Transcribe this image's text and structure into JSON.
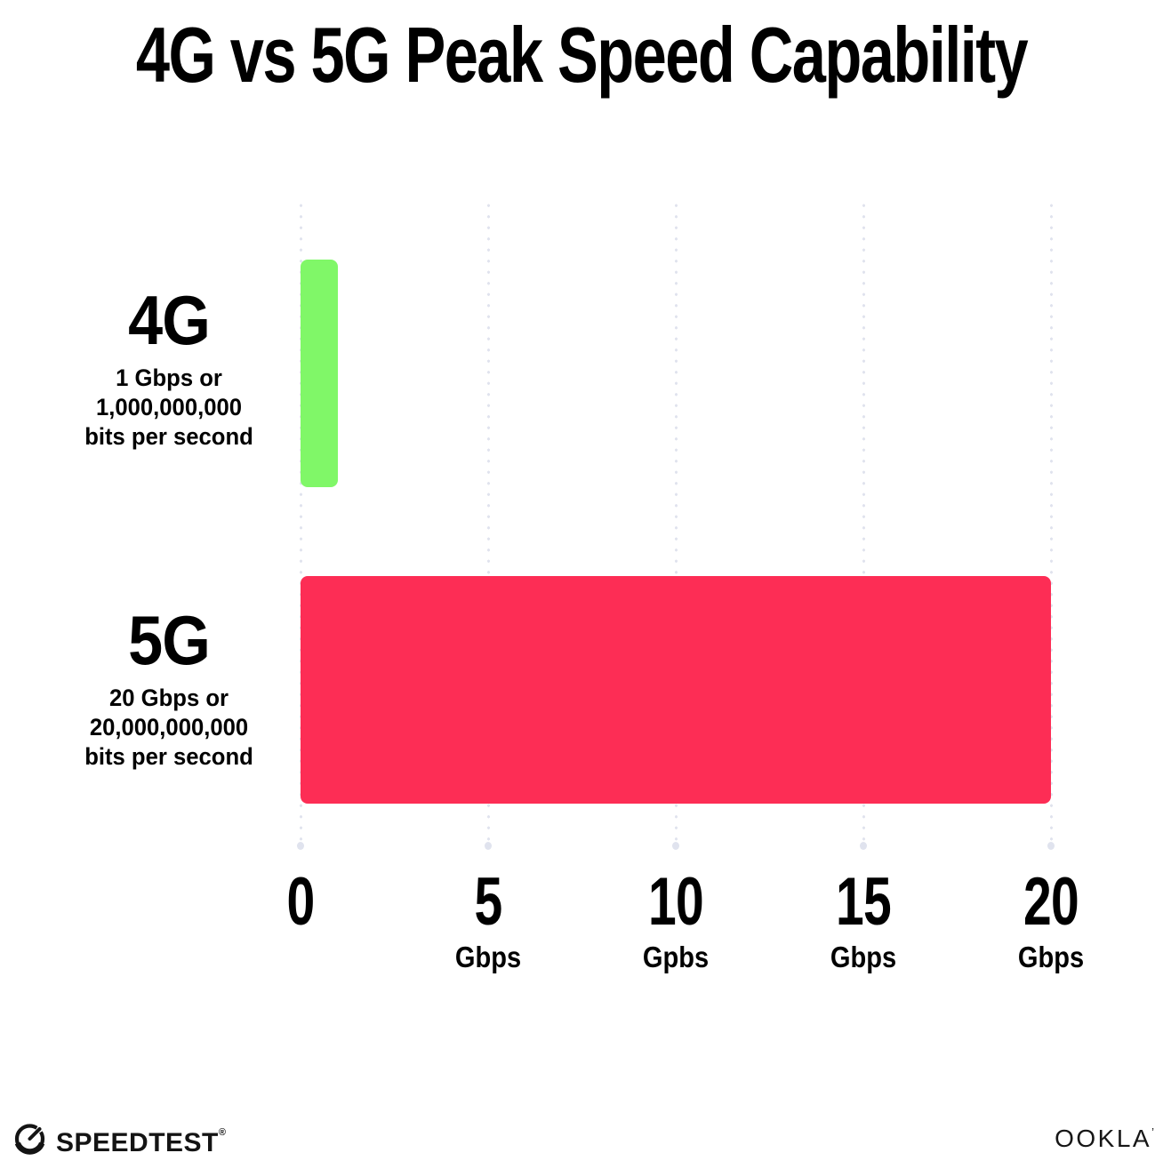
{
  "title": "4G vs 5G Peak Speed Capability",
  "chart_data": {
    "type": "bar",
    "orientation": "horizontal",
    "title": "4G vs 5G Peak Speed Capability",
    "categories": [
      "4G",
      "5G"
    ],
    "values": [
      1,
      20
    ],
    "value_unit": "Gbps",
    "xlim": [
      0,
      20
    ],
    "grid": "vertical dotted gridlines at each x tick",
    "legend": "none",
    "bars": [
      {
        "label": "4G",
        "value": 1,
        "color": "#80F768",
        "sublabel_lines": [
          "1 Gbps or",
          "1,000,000,000",
          "bits per second"
        ]
      },
      {
        "label": "5G",
        "value": 20,
        "color": "#FD2D55",
        "sublabel_lines": [
          "20 Gbps or",
          "20,000,000,000",
          "bits per second"
        ]
      }
    ],
    "x_ticks": [
      {
        "value": "0",
        "unit": ""
      },
      {
        "value": "5",
        "unit": "Gbps"
      },
      {
        "value": "10",
        "unit": "Gpbs"
      },
      {
        "value": "15",
        "unit": "Gbps"
      },
      {
        "value": "20",
        "unit": "Gbps"
      }
    ]
  },
  "footer": {
    "speedtest_logo_text": "SPEEDTEST",
    "speedtest_trademark": "®",
    "speedtest_icon": "speedtest-gauge-icon",
    "ookla_logo_text": "OOKLA",
    "ookla_trademark": "’"
  },
  "colors": {
    "bar_4g": "#80F768",
    "bar_5g": "#FD2D55",
    "gridline": "#E0E3EE",
    "text": "#000000",
    "logo": "#141414"
  }
}
